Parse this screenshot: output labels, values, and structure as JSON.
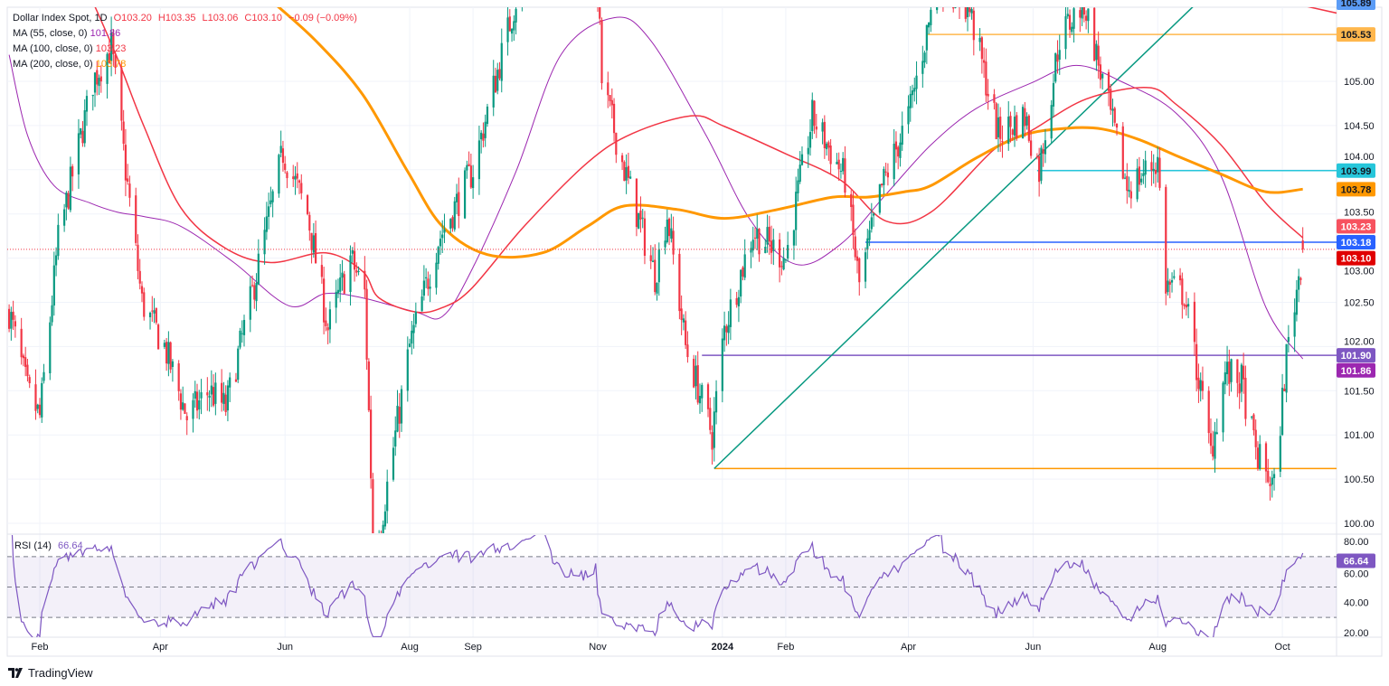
{
  "legend": {
    "symbol": "Dollar Index Spot, 1D",
    "open": "O103.20",
    "high": "H103.35",
    "low": "L103.06",
    "close": "C103.10",
    "change": "−0.09 (−0.09%)",
    "ma": [
      {
        "label": "MA (55, close, 0)",
        "value": "101.86",
        "color": "#9c27b0"
      },
      {
        "label": "MA (100, close, 0)",
        "value": "103.23",
        "color": "#f23645"
      },
      {
        "label": "MA (200, close, 0)",
        "value": "103.78",
        "color": "#ff9800"
      }
    ]
  },
  "rsi_legend": {
    "label": "RSI (14)",
    "value": "66.64"
  },
  "branding": {
    "name": "TradingView"
  },
  "chart_data": {
    "type": "candlestick",
    "symbol": "Dollar Index Spot",
    "interval": "1D",
    "ylim": [
      99.85,
      105.95
    ],
    "y_ticks": [
      "100.00",
      "100.50",
      "101.00",
      "101.50",
      "102.00",
      "102.50",
      "103.00",
      "103.50",
      "104.00",
      "104.50",
      "105.00"
    ],
    "x_ticks": [
      {
        "label": "Feb",
        "date": "2023-02-01"
      },
      {
        "label": "Apr",
        "date": "2023-04-01"
      },
      {
        "label": "Jun",
        "date": "2023-06-01"
      },
      {
        "label": "Aug",
        "date": "2023-08-01"
      },
      {
        "label": "Sep",
        "date": "2023-09-01"
      },
      {
        "label": "Nov",
        "date": "2023-11-01"
      },
      {
        "label": "2024",
        "date": "2024-01-01",
        "bold": true
      },
      {
        "label": "Feb",
        "date": "2024-02-01"
      },
      {
        "label": "Apr",
        "date": "2024-04-01"
      },
      {
        "label": "Jun",
        "date": "2024-06-01"
      },
      {
        "label": "Aug",
        "date": "2024-08-01"
      },
      {
        "label": "Oct",
        "date": "2024-10-01"
      }
    ],
    "last_candle": {
      "open": 103.2,
      "high": 103.35,
      "low": 103.06,
      "close": 103.1
    },
    "close_path": [
      [
        "2023-01-17",
        102.4
      ],
      [
        "2023-01-26",
        101.5
      ],
      [
        "2023-02-01",
        101.2
      ],
      [
        "2023-02-10",
        103.2
      ],
      [
        "2023-02-27",
        105.0
      ],
      [
        "2023-03-08",
        105.4
      ],
      [
        "2023-03-15",
        104.0
      ],
      [
        "2023-03-23",
        102.5
      ],
      [
        "2023-04-03",
        102.0
      ],
      [
        "2023-04-14",
        101.2
      ],
      [
        "2023-04-25",
        101.5
      ],
      [
        "2023-05-03",
        101.3
      ],
      [
        "2023-05-15",
        102.5
      ],
      [
        "2023-05-31",
        104.2
      ],
      [
        "2023-06-12",
        103.5
      ],
      [
        "2023-06-22",
        102.2
      ],
      [
        "2023-07-03",
        103.0
      ],
      [
        "2023-07-10",
        102.6
      ],
      [
        "2023-07-14",
        99.9
      ],
      [
        "2023-07-18",
        100.0
      ],
      [
        "2023-08-01",
        102.0
      ],
      [
        "2023-08-15",
        103.2
      ],
      [
        "2023-09-01",
        104.0
      ],
      [
        "2023-09-15",
        105.3
      ],
      [
        "2023-10-03",
        106.9
      ],
      [
        "2023-10-20",
        106.2
      ],
      [
        "2023-10-31",
        106.6
      ],
      [
        "2023-11-03",
        105.0
      ],
      [
        "2023-11-14",
        104.0
      ],
      [
        "2023-11-29",
        102.8
      ],
      [
        "2023-12-05",
        103.5
      ],
      [
        "2023-12-14",
        102.0
      ],
      [
        "2023-12-27",
        101.0
      ],
      [
        "2024-01-02",
        102.2
      ],
      [
        "2024-01-16",
        103.3
      ],
      [
        "2024-02-01",
        103.0
      ],
      [
        "2024-02-14",
        104.6
      ],
      [
        "2024-03-01",
        103.9
      ],
      [
        "2024-03-08",
        102.7
      ],
      [
        "2024-03-19",
        103.8
      ],
      [
        "2024-04-01",
        104.6
      ],
      [
        "2024-04-16",
        106.2
      ],
      [
        "2024-05-01",
        105.8
      ],
      [
        "2024-05-15",
        104.4
      ],
      [
        "2024-05-28",
        104.6
      ],
      [
        "2024-06-04",
        104.0
      ],
      [
        "2024-06-14",
        105.5
      ],
      [
        "2024-06-26",
        105.9
      ],
      [
        "2024-07-05",
        105.0
      ],
      [
        "2024-07-17",
        103.8
      ],
      [
        "2024-08-01",
        104.1
      ],
      [
        "2024-08-05",
        102.7
      ],
      [
        "2024-08-14",
        102.6
      ],
      [
        "2024-08-27",
        100.8
      ],
      [
        "2024-09-03",
        101.7
      ],
      [
        "2024-09-11",
        101.6
      ],
      [
        "2024-09-18",
        100.8
      ],
      [
        "2024-09-27",
        100.4
      ],
      [
        "2024-10-03",
        101.9
      ],
      [
        "2024-10-07",
        102.5
      ],
      [
        "2024-10-11",
        103.1
      ]
    ],
    "moving_averages": [
      {
        "name": "MA 55",
        "color": "#9c27b0",
        "width": 1,
        "points": [
          [
            "2023-01-17",
            105.3
          ],
          [
            "2023-01-26",
            104.39
          ],
          [
            "2023-02-08",
            103.82
          ],
          [
            "2023-02-26",
            103.62
          ],
          [
            "2023-03-11",
            103.52
          ],
          [
            "2023-03-24",
            103.47
          ],
          [
            "2023-04-11",
            103.36
          ],
          [
            "2023-05-07",
            102.95
          ],
          [
            "2023-06-03",
            102.46
          ],
          [
            "2023-06-21",
            102.6
          ],
          [
            "2023-07-09",
            102.55
          ],
          [
            "2023-08-04",
            102.39
          ],
          [
            "2023-08-17",
            102.34
          ],
          [
            "2023-08-31",
            102.85
          ],
          [
            "2023-09-22",
            103.98
          ],
          [
            "2023-10-14",
            105.3
          ],
          [
            "2023-11-09",
            105.72
          ],
          [
            "2023-11-27",
            105.46
          ],
          [
            "2023-12-24",
            104.39
          ],
          [
            "2024-01-15",
            103.42
          ],
          [
            "2024-02-06",
            102.93
          ],
          [
            "2024-02-28",
            103.16
          ],
          [
            "2024-03-21",
            103.72
          ],
          [
            "2024-04-12",
            104.28
          ],
          [
            "2024-05-04",
            104.69
          ],
          [
            "2024-05-31",
            104.98
          ],
          [
            "2024-06-22",
            105.18
          ],
          [
            "2024-07-14",
            105.0
          ],
          [
            "2024-08-10",
            104.64
          ],
          [
            "2024-09-01",
            103.93
          ],
          [
            "2024-09-23",
            102.44
          ],
          [
            "2024-10-11",
            101.86
          ]
        ]
      },
      {
        "name": "MA 100",
        "color": "#f23645",
        "width": 1.5,
        "points": [
          [
            "2023-02-26",
            105.95
          ],
          [
            "2023-03-11",
            105.26
          ],
          [
            "2023-03-24",
            104.49
          ],
          [
            "2023-04-11",
            103.57
          ],
          [
            "2023-05-03",
            103.11
          ],
          [
            "2023-05-25",
            102.95
          ],
          [
            "2023-06-21",
            103.06
          ],
          [
            "2023-07-09",
            102.85
          ],
          [
            "2023-07-17",
            102.55
          ],
          [
            "2023-08-04",
            102.39
          ],
          [
            "2023-08-17",
            102.44
          ],
          [
            "2023-08-31",
            102.65
          ],
          [
            "2023-09-26",
            103.36
          ],
          [
            "2023-10-27",
            104.08
          ],
          [
            "2023-11-18",
            104.41
          ],
          [
            "2023-12-17",
            104.61
          ],
          [
            "2024-01-02",
            104.49
          ],
          [
            "2024-02-01",
            104.18
          ],
          [
            "2024-02-28",
            103.88
          ],
          [
            "2024-03-21",
            103.42
          ],
          [
            "2024-04-12",
            103.52
          ],
          [
            "2024-05-13",
            104.23
          ],
          [
            "2024-05-31",
            104.44
          ],
          [
            "2024-06-27",
            104.8
          ],
          [
            "2024-07-27",
            104.93
          ],
          [
            "2024-08-10",
            104.74
          ],
          [
            "2024-09-01",
            104.28
          ],
          [
            "2024-09-23",
            103.62
          ],
          [
            "2024-10-11",
            103.23
          ]
        ]
      },
      {
        "name": "MA 200",
        "color": "#ff9800",
        "width": 3,
        "points": [
          [
            "2023-05-20",
            106.05
          ],
          [
            "2023-05-25",
            105.92
          ],
          [
            "2023-06-16",
            105.46
          ],
          [
            "2023-07-09",
            104.85
          ],
          [
            "2023-07-31",
            103.98
          ],
          [
            "2023-08-17",
            103.36
          ],
          [
            "2023-09-08",
            103.04
          ],
          [
            "2023-10-05",
            103.06
          ],
          [
            "2023-10-27",
            103.36
          ],
          [
            "2023-11-14",
            103.59
          ],
          [
            "2023-12-10",
            103.55
          ],
          [
            "2024-01-02",
            103.45
          ],
          [
            "2024-01-28",
            103.55
          ],
          [
            "2024-02-24",
            103.69
          ],
          [
            "2024-03-12",
            103.69
          ],
          [
            "2024-03-30",
            103.75
          ],
          [
            "2024-04-12",
            103.82
          ],
          [
            "2024-05-04",
            104.13
          ],
          [
            "2024-05-27",
            104.39
          ],
          [
            "2024-06-18",
            104.47
          ],
          [
            "2024-07-05",
            104.46
          ],
          [
            "2024-07-23",
            104.34
          ],
          [
            "2024-08-10",
            104.16
          ],
          [
            "2024-09-01",
            103.95
          ],
          [
            "2024-09-23",
            103.75
          ],
          [
            "2024-10-11",
            103.78
          ]
        ]
      }
    ],
    "horizontal_levels": [
      {
        "value": 105.53,
        "from": "2024-04-10",
        "color": "#ffb74d"
      },
      {
        "value": 103.99,
        "from": "2024-06-03",
        "color": "#26c6da"
      },
      {
        "value": 103.18,
        "from": "2024-03-11",
        "color": "#2962ff"
      },
      {
        "value": 101.9,
        "from": "2023-12-22",
        "color": "#7e57c2"
      },
      {
        "value": 100.62,
        "from": "2023-12-28",
        "color": "#ff9800"
      }
    ],
    "trendlines": [
      {
        "from": [
          "2023-12-28",
          100.62
        ],
        "to": [
          "2024-08-23",
          105.95
        ],
        "color": "#089981"
      },
      {
        "from": [
          "2024-09-23",
          105.95
        ],
        "to": [
          "2024-10-28",
          105.77
        ],
        "color": "#f23645"
      }
    ],
    "last_price_line": {
      "value": 103.1,
      "color": "#f23645"
    },
    "price_tags": [
      {
        "value": "105.89",
        "y_value": 105.89,
        "bg": "#5b9cf6",
        "fg": "#131722"
      },
      {
        "value": "105.53",
        "y_value": 105.53,
        "bg": "#ffb74d",
        "fg": "#131722"
      },
      {
        "value": "103.99",
        "y_value": 103.99,
        "bg": "#26c6da",
        "fg": "#131722"
      },
      {
        "value": "103.78",
        "y_value": 103.78,
        "bg": "#ff9800",
        "fg": "#131722"
      },
      {
        "value": "103.23",
        "y_value": 103.36,
        "bg": "#f7525f",
        "fg": "#ffffff"
      },
      {
        "value": "103.18",
        "y_value": 103.18,
        "bg": "#2962ff",
        "fg": "#ffffff"
      },
      {
        "value": "103.10",
        "y_value": 103.0,
        "bg": "#e00000",
        "fg": "#ffffff"
      },
      {
        "value": "101.90",
        "y_value": 101.9,
        "bg": "#7e57c2",
        "fg": "#ffffff"
      },
      {
        "value": "101.86",
        "y_value": 101.73,
        "bg": "#9c27b0",
        "fg": "#ffffff"
      }
    ],
    "rsi": {
      "period": 14,
      "ylim": [
        20,
        80
      ],
      "bands": [
        70,
        50,
        30
      ],
      "y_ticks": [
        "80.00",
        "60.00",
        "40.00",
        "20.00"
      ],
      "last": "66.64",
      "color": "#7e57c2"
    },
    "colors": {
      "up": "#089981",
      "down": "#f23645"
    }
  }
}
